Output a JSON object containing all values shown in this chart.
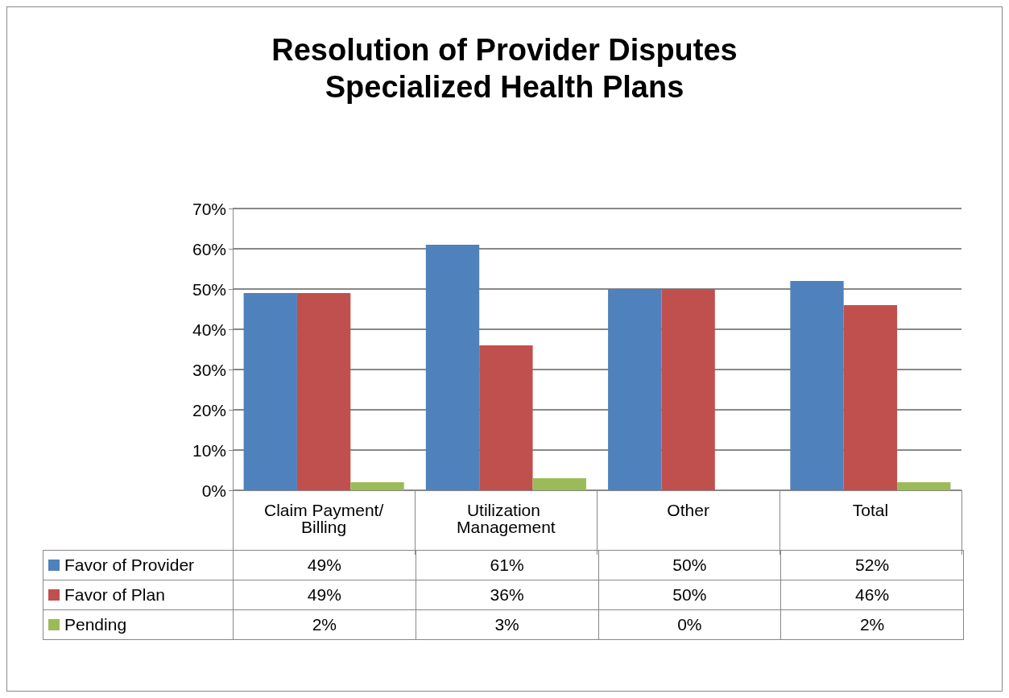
{
  "chart_data": {
    "type": "bar",
    "title": "Resolution of Provider Disputes\nSpecialized Health Plans",
    "categories": [
      "Claim Payment/Billing",
      "Utilization Management",
      "Other",
      "Total"
    ],
    "series": [
      {
        "name": "Favor of Provider",
        "color": "#4f81bd",
        "values": [
          49,
          61,
          50,
          52
        ],
        "value_labels": [
          "49%",
          "61%",
          "50%",
          "52%"
        ]
      },
      {
        "name": "Favor of Plan",
        "color": "#c0504d",
        "values": [
          49,
          36,
          50,
          46
        ],
        "value_labels": [
          "49%",
          "36%",
          "50%",
          "46%"
        ]
      },
      {
        "name": "Pending",
        "color": "#9bbb59",
        "values": [
          2,
          3,
          0,
          2
        ],
        "value_labels": [
          "2%",
          "3%",
          "0%",
          "2%"
        ]
      }
    ],
    "ylim": [
      0,
      70
    ],
    "yticks": [
      {
        "value": 0,
        "label": "0%"
      },
      {
        "value": 10,
        "label": "10%"
      },
      {
        "value": 20,
        "label": "20%"
      },
      {
        "value": 30,
        "label": "30%"
      },
      {
        "value": 40,
        "label": "40%"
      },
      {
        "value": 50,
        "label": "50%"
      },
      {
        "value": 60,
        "label": "60%"
      },
      {
        "value": 70,
        "label": "70%"
      }
    ],
    "grid": "y",
    "legend": "bottom"
  }
}
